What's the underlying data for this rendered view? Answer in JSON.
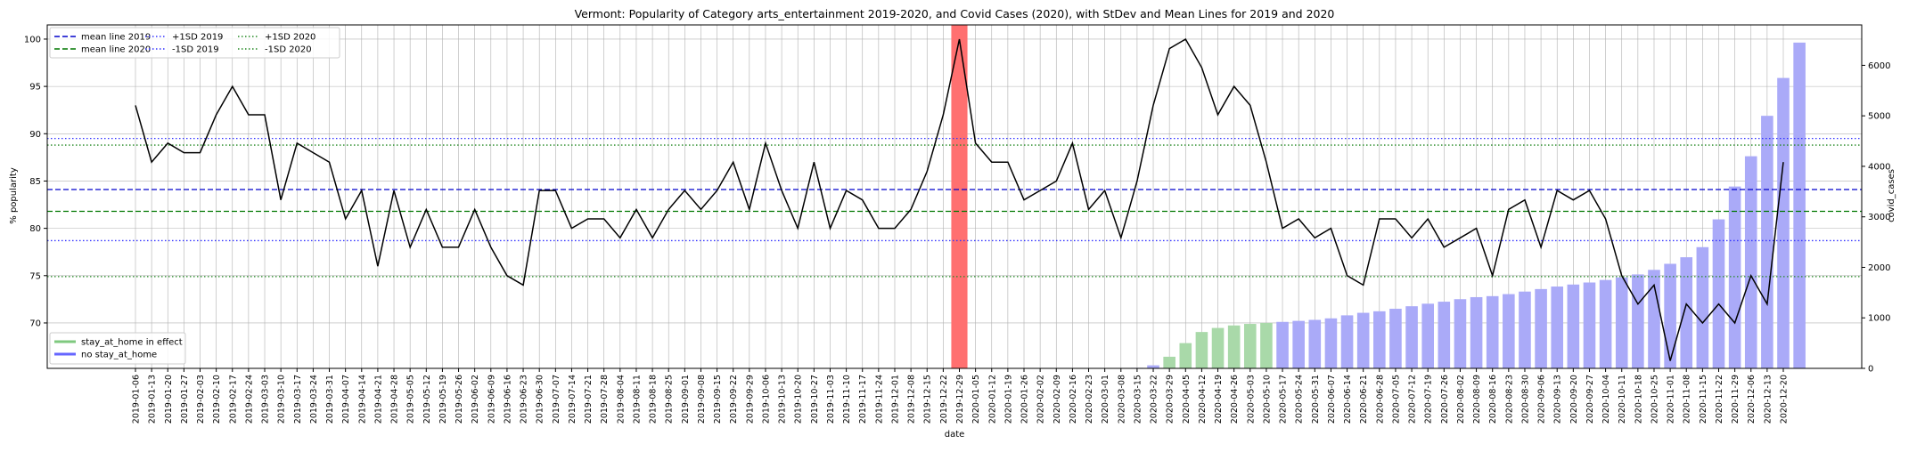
{
  "chart_data": {
    "type": "line",
    "title": "Vermont: Popularity of Category arts_entertainment 2019-2020, and Covid Cases (2020), with StDev and Mean Lines for 2019 and 2020",
    "xlabel": "date",
    "ylabel": "% popularity",
    "y2label": "covid_cases",
    "ylim": [
      65.2,
      101.5
    ],
    "y2lim": [
      0,
      6800
    ],
    "yticks": [
      70,
      75,
      80,
      85,
      90,
      95,
      100
    ],
    "y2ticks": [
      0,
      1000,
      2000,
      3000,
      4000,
      5000,
      6000
    ],
    "grid": true,
    "x": [
      "2019-01-06",
      "2019-01-13",
      "2019-01-20",
      "2019-01-27",
      "2019-02-03",
      "2019-02-10",
      "2019-02-17",
      "2019-02-24",
      "2019-03-03",
      "2019-03-10",
      "2019-03-17",
      "2019-03-24",
      "2019-03-31",
      "2019-04-07",
      "2019-04-14",
      "2019-04-21",
      "2019-04-28",
      "2019-05-05",
      "2019-05-12",
      "2019-05-19",
      "2019-05-26",
      "2019-06-02",
      "2019-06-09",
      "2019-06-16",
      "2019-06-23",
      "2019-06-30",
      "2019-07-07",
      "2019-07-14",
      "2019-07-21",
      "2019-07-28",
      "2019-08-04",
      "2019-08-11",
      "2019-08-18",
      "2019-08-25",
      "2019-09-01",
      "2019-09-08",
      "2019-09-15",
      "2019-09-22",
      "2019-09-29",
      "2019-10-06",
      "2019-10-13",
      "2019-10-20",
      "2019-10-27",
      "2019-11-03",
      "2019-11-10",
      "2019-11-17",
      "2019-11-24",
      "2019-12-01",
      "2019-12-08",
      "2019-12-15",
      "2019-12-22",
      "2019-12-29",
      "2020-01-05",
      "2020-01-12",
      "2020-01-19",
      "2020-01-26",
      "2020-02-02",
      "2020-02-09",
      "2020-02-16",
      "2020-02-23",
      "2020-03-01",
      "2020-03-08",
      "2020-03-15",
      "2020-03-22",
      "2020-03-29",
      "2020-04-05",
      "2020-04-12",
      "2020-04-19",
      "2020-04-26",
      "2020-05-03",
      "2020-05-10",
      "2020-05-17",
      "2020-05-24",
      "2020-05-31",
      "2020-06-07",
      "2020-06-14",
      "2020-06-21",
      "2020-06-28",
      "2020-07-05",
      "2020-07-12",
      "2020-07-19",
      "2020-07-26",
      "2020-08-02",
      "2020-08-09",
      "2020-08-16",
      "2020-08-23",
      "2020-08-30",
      "2020-09-06",
      "2020-09-13",
      "2020-09-20",
      "2020-09-27",
      "2020-10-04",
      "2020-10-11",
      "2020-10-18",
      "2020-10-25",
      "2020-11-01",
      "2020-11-08",
      "2020-11-15",
      "2020-11-22",
      "2020-11-29",
      "2020-12-06",
      "2020-12-13",
      "2020-12-20"
    ],
    "popularity": [
      93,
      87,
      89,
      88,
      88,
      92,
      95,
      92,
      92,
      83,
      89,
      88,
      87,
      81,
      84,
      76,
      84,
      78,
      82,
      78,
      78,
      82,
      78,
      75,
      74,
      84,
      84,
      80,
      81,
      81,
      79,
      82,
      79,
      82,
      84,
      82,
      84,
      87,
      82,
      89,
      84,
      80,
      87,
      80,
      84,
      83,
      80,
      80,
      82,
      86,
      92,
      100,
      89,
      87,
      87,
      83,
      84,
      85,
      89,
      82,
      84,
      79,
      85,
      93,
      99,
      100,
      97,
      92,
      95,
      93,
      87,
      80,
      81,
      79,
      80,
      75,
      74,
      81,
      81,
      79,
      81,
      78,
      79,
      80,
      75,
      82,
      83,
      78,
      84,
      83,
      84,
      81,
      75,
      72,
      74,
      66,
      72,
      70,
      72,
      70,
      75,
      72,
      87
    ],
    "covid_cases": [
      0,
      0,
      0,
      0,
      0,
      0,
      0,
      0,
      0,
      0,
      0,
      0,
      0,
      0,
      0,
      0,
      0,
      0,
      0,
      0,
      0,
      0,
      0,
      0,
      0,
      0,
      0,
      0,
      0,
      0,
      0,
      0,
      0,
      0,
      0,
      0,
      0,
      0,
      0,
      0,
      0,
      0,
      0,
      0,
      0,
      0,
      0,
      0,
      0,
      0,
      0,
      0,
      0,
      0,
      0,
      0,
      0,
      0,
      0,
      0,
      0,
      0,
      10,
      60,
      230,
      500,
      720,
      800,
      850,
      880,
      900,
      920,
      940,
      960,
      990,
      1050,
      1100,
      1130,
      1180,
      1230,
      1280,
      1320,
      1370,
      1410,
      1430,
      1470,
      1520,
      1570,
      1620,
      1660,
      1700,
      1750,
      1800,
      1860,
      1950,
      2070,
      2200,
      2400,
      2950,
      3600,
      4200,
      5000,
      5750,
      6450
    ],
    "stay_at_home_dates": [
      "2020-03-29",
      "2020-04-05",
      "2020-04-12",
      "2020-04-19",
      "2020-04-26",
      "2020-05-03",
      "2020-05-10"
    ],
    "highlight_date": "2019-12-29",
    "reference_lines": [
      {
        "name": "mean line 2019",
        "value": 84.1,
        "color": "#0000cc",
        "style": "dashed"
      },
      {
        "name": "mean line 2020",
        "value": 81.8,
        "color": "#007700",
        "style": "dashed"
      },
      {
        "name": "+1SD 2019",
        "value": 89.5,
        "color": "#3333ff",
        "style": "dotted"
      },
      {
        "name": "-1SD 2019",
        "value": 78.7,
        "color": "#3333ff",
        "style": "dotted"
      },
      {
        "name": "+1SD 2020",
        "value": 88.8,
        "color": "#228822",
        "style": "dotted"
      },
      {
        "name": "-1SD 2020",
        "value": 74.9,
        "color": "#228822",
        "style": "dotted"
      }
    ],
    "legend_top": {
      "placement": "top-left",
      "columns": [
        [
          "mean line 2019",
          "mean line 2020"
        ],
        [
          "+1SD 2019",
          "-1SD 2019"
        ],
        [
          "+1SD 2020",
          "-1SD 2020"
        ]
      ]
    },
    "legend_bottom": {
      "placement": "bottom-left",
      "items": [
        {
          "label": "stay_at_home in effect",
          "color": "#7fc97f"
        },
        {
          "label": "no stay_at_home",
          "color": "#6666ff"
        }
      ]
    },
    "colors": {
      "line": "#000000",
      "bar_stay": "#a9d9a9",
      "bar_no_stay": "#aaaaf8",
      "highlight": "#ff7070",
      "grid": "#b0b0b0"
    }
  }
}
